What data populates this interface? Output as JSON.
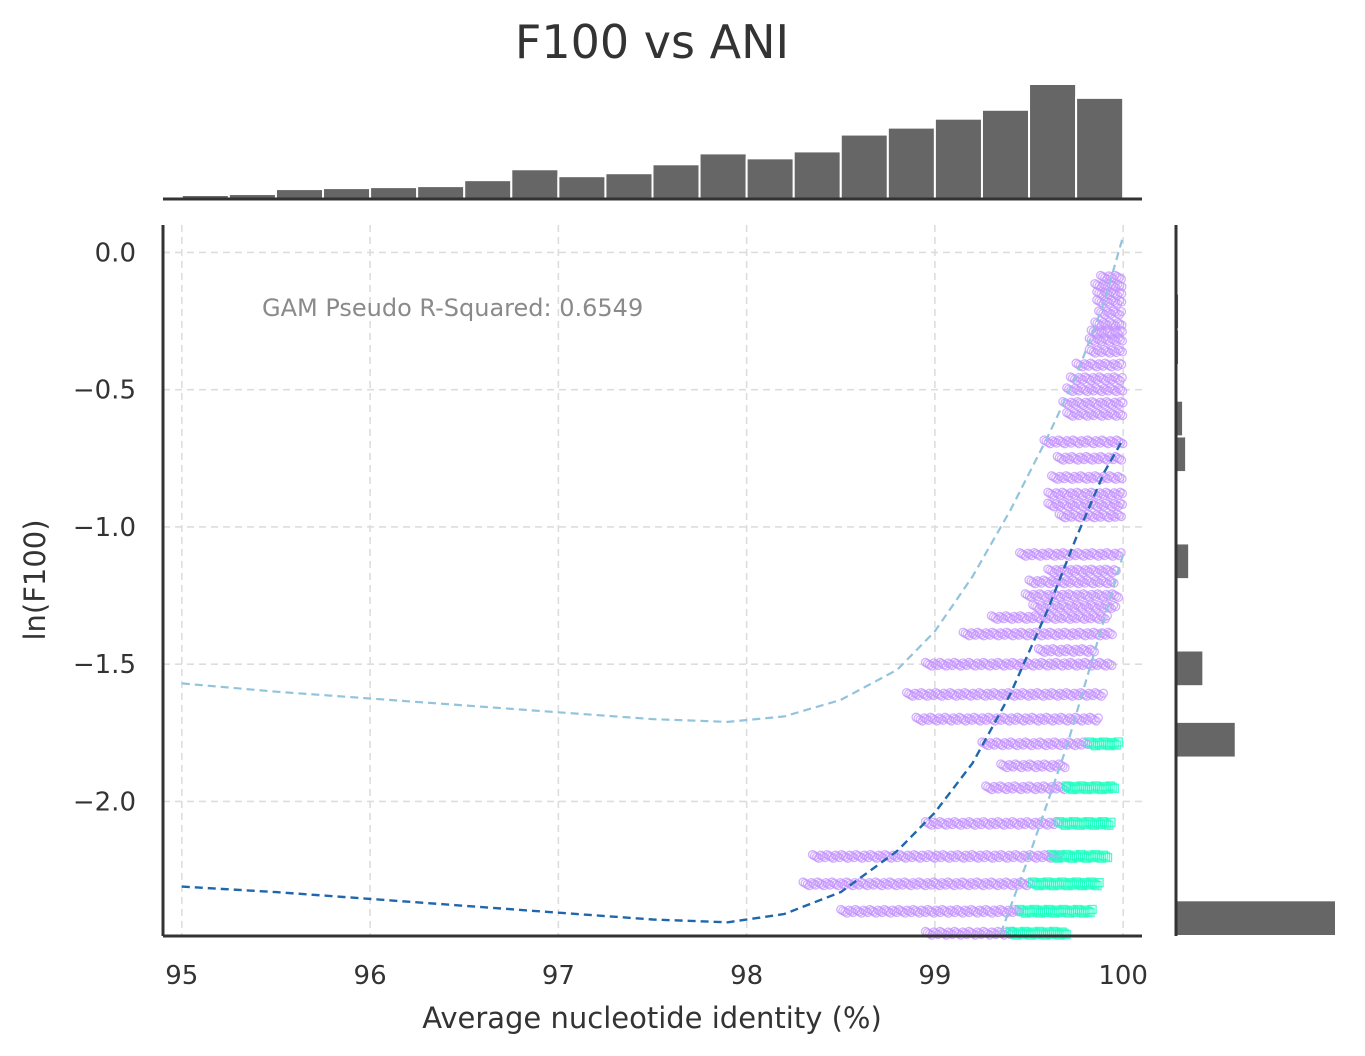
{
  "chart_data": {
    "type": "scatter",
    "title": "F100 vs ANI",
    "xlabel": "Average nucleotide identity (%)",
    "ylabel": "ln(F100)",
    "xlim": [
      94.9,
      100.1
    ],
    "ylim": [
      -2.49,
      0.1
    ],
    "x_ticks": [
      95,
      96,
      97,
      98,
      99,
      100
    ],
    "x_tick_labels": [
      "95",
      "96",
      "97",
      "98",
      "99",
      "100"
    ],
    "y_ticks": [
      0.0,
      -0.5,
      -1.0,
      -1.5,
      -2.0
    ],
    "y_tick_labels": [
      "0.0",
      "−0.5",
      "−1.0",
      "−1.5",
      "−2.0"
    ],
    "grid": true,
    "annotation": "GAM Pseudo R-Squared: 0.6549",
    "colors": {
      "circle_series": "#c493ff",
      "square_series": "#1affc0",
      "gam_fit": "#2066ad",
      "gam_interval": "#93c4dd",
      "histogram": "#666666",
      "axes": "#333333"
    },
    "series": [
      {
        "marker": "circle",
        "color": "#c493ff",
        "bands": [
          {
            "y": -0.09,
            "x": [
              99.88,
              100.0
            ]
          },
          {
            "y": -0.12,
            "x": [
              99.85,
              100.0
            ]
          },
          {
            "y": -0.15,
            "x": [
              99.86,
              100.0
            ]
          },
          {
            "y": -0.18,
            "x": [
              99.86,
              100.0
            ]
          },
          {
            "y": -0.22,
            "x": [
              99.87,
              100.0
            ]
          },
          {
            "y": -0.26,
            "x": [
              99.85,
              100.0
            ]
          },
          {
            "y": -0.29,
            "x": [
              99.83,
              100.0
            ]
          },
          {
            "y": -0.32,
            "x": [
              99.82,
              100.0
            ]
          },
          {
            "y": -0.36,
            "x": [
              99.82,
              100.0
            ]
          },
          {
            "y": -0.41,
            "x": [
              99.75,
              100.0
            ]
          },
          {
            "y": -0.46,
            "x": [
              99.72,
              100.0
            ]
          },
          {
            "y": -0.5,
            "x": [
              99.7,
              100.0
            ]
          },
          {
            "y": -0.55,
            "x": [
              99.68,
              100.0
            ]
          },
          {
            "y": -0.59,
            "x": [
              99.7,
              100.0
            ]
          },
          {
            "y": -0.69,
            "x": [
              99.58,
              100.0
            ]
          },
          {
            "y": -0.75,
            "x": [
              99.65,
              100.0
            ]
          },
          {
            "y": -0.82,
            "x": [
              99.62,
              100.0
            ]
          },
          {
            "y": -0.88,
            "x": [
              99.6,
              100.0
            ]
          },
          {
            "y": -0.92,
            "x": [
              99.6,
              100.0
            ]
          },
          {
            "y": -0.96,
            "x": [
              99.66,
              100.0
            ]
          },
          {
            "y": -1.1,
            "x": [
              99.45,
              99.99
            ]
          },
          {
            "y": -1.16,
            "x": [
              99.6,
              99.97
            ]
          },
          {
            "y": -1.2,
            "x": [
              99.5,
              99.96
            ]
          },
          {
            "y": -1.25,
            "x": [
              99.48,
              99.98
            ]
          },
          {
            "y": -1.29,
            "x": [
              99.52,
              99.96
            ]
          },
          {
            "y": -1.33,
            "x": [
              99.3,
              99.92
            ]
          },
          {
            "y": -1.39,
            "x": [
              99.15,
              99.95
            ]
          },
          {
            "y": -1.45,
            "x": [
              99.55,
              99.85
            ]
          },
          {
            "y": -1.5,
            "x": [
              98.95,
              99.95
            ]
          },
          {
            "y": -1.61,
            "x": [
              98.85,
              99.9
            ]
          },
          {
            "y": -1.7,
            "x": [
              98.9,
              99.87
            ]
          },
          {
            "y": -1.79,
            "x": [
              99.25,
              99.82
            ]
          },
          {
            "y": -1.87,
            "x": [
              99.35,
              99.7
            ]
          },
          {
            "y": -1.95,
            "x": [
              99.27,
              99.7
            ]
          },
          {
            "y": -2.08,
            "x": [
              98.95,
              99.66
            ]
          },
          {
            "y": -2.2,
            "x": [
              98.35,
              99.66
            ]
          },
          {
            "y": -2.3,
            "x": [
              98.3,
              99.52
            ]
          },
          {
            "y": -2.4,
            "x": [
              98.5,
              99.45
            ]
          },
          {
            "y": -2.48,
            "x": [
              98.95,
              99.42
            ]
          }
        ]
      },
      {
        "marker": "square",
        "color": "#1affc0",
        "bands": [
          {
            "y": -1.79,
            "x": [
              99.82,
              99.98
            ]
          },
          {
            "y": -1.95,
            "x": [
              99.7,
              99.96
            ]
          },
          {
            "y": -2.08,
            "x": [
              99.66,
              99.94
            ]
          },
          {
            "y": -2.2,
            "x": [
              99.62,
              99.92
            ]
          },
          {
            "y": -2.3,
            "x": [
              99.52,
              99.88
            ]
          },
          {
            "y": -2.4,
            "x": [
              99.45,
              99.84
            ]
          },
          {
            "y": -2.48,
            "x": [
              99.4,
              99.7
            ]
          }
        ]
      }
    ],
    "gam_fit": {
      "x": [
        95.0,
        95.5,
        96.0,
        96.5,
        97.0,
        97.5,
        97.9,
        98.2,
        98.5,
        98.8,
        99.0,
        99.2,
        99.4,
        99.6,
        99.75,
        99.9,
        100.0
      ],
      "y": [
        -2.31,
        -2.33,
        -2.355,
        -2.38,
        -2.405,
        -2.43,
        -2.44,
        -2.41,
        -2.33,
        -2.18,
        -2.04,
        -1.86,
        -1.61,
        -1.3,
        -1.04,
        -0.8,
        -0.68
      ]
    },
    "gam_interval_upper": {
      "x": [
        95.0,
        95.5,
        96.0,
        96.5,
        97.0,
        97.5,
        97.9,
        98.2,
        98.5,
        98.8,
        99.0,
        99.2,
        99.4,
        99.6,
        99.75,
        99.9,
        100.0
      ],
      "y": [
        -1.57,
        -1.6,
        -1.625,
        -1.65,
        -1.675,
        -1.7,
        -1.71,
        -1.69,
        -1.63,
        -1.52,
        -1.38,
        -1.18,
        -0.94,
        -0.67,
        -0.45,
        -0.18,
        0.06
      ]
    },
    "gam_interval_lower": {
      "x": [
        99.35,
        99.5,
        99.7,
        99.85,
        100.0
      ],
      "y": [
        -2.48,
        -2.2,
        -1.8,
        -1.45,
        -1.1
      ]
    },
    "marginal_x": {
      "bin_edges": [
        95.0,
        95.25,
        95.5,
        95.75,
        96.0,
        96.25,
        96.5,
        96.75,
        97.0,
        97.25,
        97.5,
        97.75,
        98.0,
        98.25,
        98.5,
        98.75,
        99.0,
        99.25,
        99.5,
        99.75,
        100.0
      ],
      "counts": [
        4,
        5,
        10,
        11,
        12,
        13,
        19,
        30,
        23,
        26,
        35,
        46,
        41,
        48,
        65,
        72,
        81,
        90,
        116,
        102
      ]
    },
    "marginal_y": {
      "bin_edges": [
        -2.49,
        -2.36,
        -2.23,
        -2.1,
        -1.97,
        -1.84,
        -1.71,
        -1.58,
        -1.45,
        -1.32,
        -1.19,
        -1.06,
        -0.93,
        -0.8,
        -0.67,
        -0.54,
        -0.41,
        -0.28,
        -0.15,
        -0.02,
        0.1
      ],
      "counts": [
        158,
        0,
        0,
        0,
        0,
        59,
        0,
        27,
        0,
        0,
        13,
        0,
        0,
        10,
        7,
        0,
        3,
        3,
        0,
        0
      ]
    }
  }
}
